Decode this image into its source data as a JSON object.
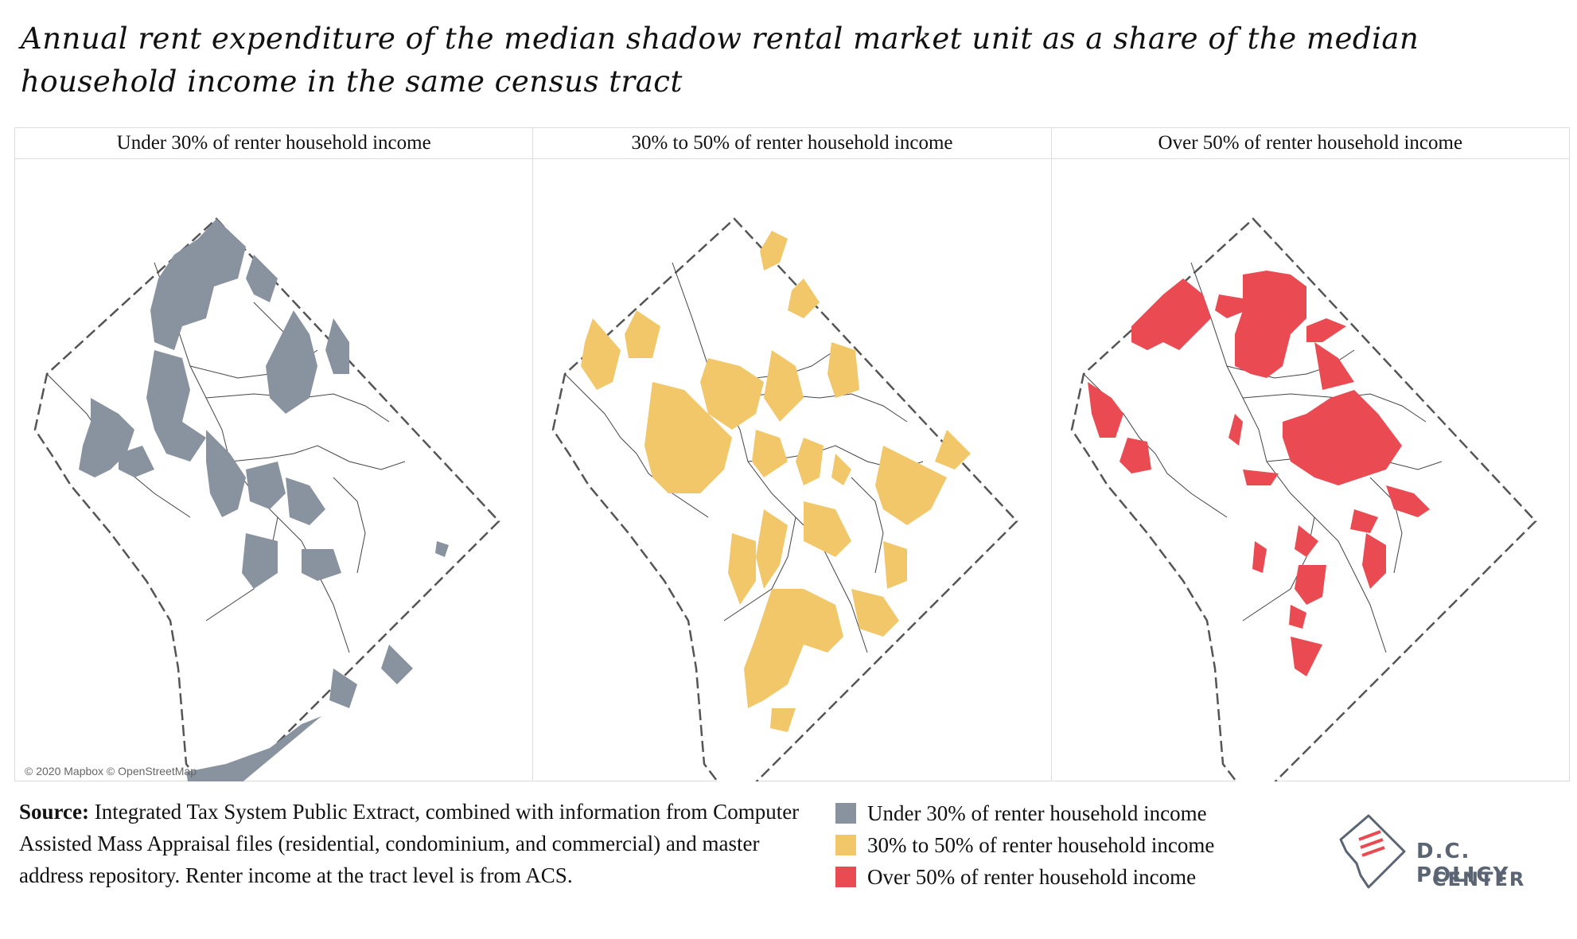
{
  "title": "Annual rent expenditure of the median shadow rental market unit as a share of the median household income in the same census tract",
  "panels": [
    {
      "label": "Under 30% of renter household income",
      "color": "#8993a0"
    },
    {
      "label": "30% to 50% of renter household income",
      "color": "#f2c76a"
    },
    {
      "label": "Over 50% of renter household income",
      "color": "#ea4a51"
    }
  ],
  "attribution": "© 2020 Mapbox © OpenStreetMap",
  "source": {
    "label": "Source:",
    "text": "Integrated Tax System Public Extract, combined with information from Computer Assisted Mass Appraisal files (residential, condominium, and commercial) and master address repository. Renter income at the tract level is from ACS."
  },
  "legend": [
    {
      "label": "Under 30% of renter household income",
      "color": "#8993a0"
    },
    {
      "label": "30% to 50% of renter household income",
      "color": "#f2c76a"
    },
    {
      "label": "Over 50% of renter household income",
      "color": "#ea4a51"
    }
  ],
  "logo": {
    "line1": "D.C. POLICY",
    "line2": "CENTER"
  }
}
